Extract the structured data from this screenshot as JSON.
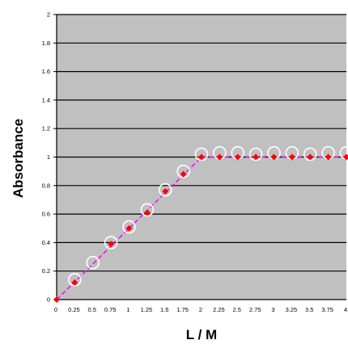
{
  "chart_data": {
    "type": "scatter",
    "title": "",
    "xlabel": "L / M",
    "ylabel": "Absorbance",
    "xlim": [
      0,
      4
    ],
    "ylim": [
      0,
      2
    ],
    "x_ticks": [
      "0",
      "0.25",
      "0.5",
      "0.75",
      "1",
      "1.25",
      "1.5",
      "1.75",
      "2",
      "2.25",
      "2.5",
      "2.75",
      "3",
      "3.25",
      "3.5",
      "3.75",
      "4",
      "4"
    ],
    "y_ticks": [
      "0",
      "0.2",
      "0.4",
      "0.6",
      "0.8",
      "1",
      "1.2",
      "1.4",
      "1.6",
      "1.8",
      "2"
    ],
    "grid": "horizontal",
    "plot_background": "#c0c0c0",
    "series": [
      {
        "style": "open-circle",
        "color": "#ffffff",
        "x": [
          0.25,
          0.5,
          0.75,
          1,
          1.25,
          1.5,
          1.75,
          2,
          2.25,
          2.5,
          2.75,
          3,
          3.25,
          3.5,
          3.75,
          4
        ],
        "y": [
          0.14,
          0.26,
          0.4,
          0.51,
          0.63,
          0.77,
          0.9,
          1.02,
          1.03,
          1.03,
          1.02,
          1.03,
          1.03,
          1.02,
          1.03,
          1.03
        ]
      },
      {
        "style": "diamond-marker",
        "color": "#ff0000",
        "x": [
          0,
          0.25,
          0.75,
          1,
          1.25,
          1.5,
          1.75,
          2,
          2.25,
          2.5,
          2.75,
          3,
          3.25,
          3.5,
          3.75,
          4
        ],
        "y": [
          0,
          0.12,
          0.39,
          0.5,
          0.61,
          0.76,
          0.88,
          1.0,
          1.0,
          1.0,
          1.0,
          1.0,
          1.0,
          1.0,
          1.0,
          1.0
        ]
      },
      {
        "style": "dashed-line",
        "color": "#ff00ff",
        "x": [
          0,
          2,
          4
        ],
        "y": [
          0,
          1.0,
          1.0
        ]
      }
    ]
  }
}
